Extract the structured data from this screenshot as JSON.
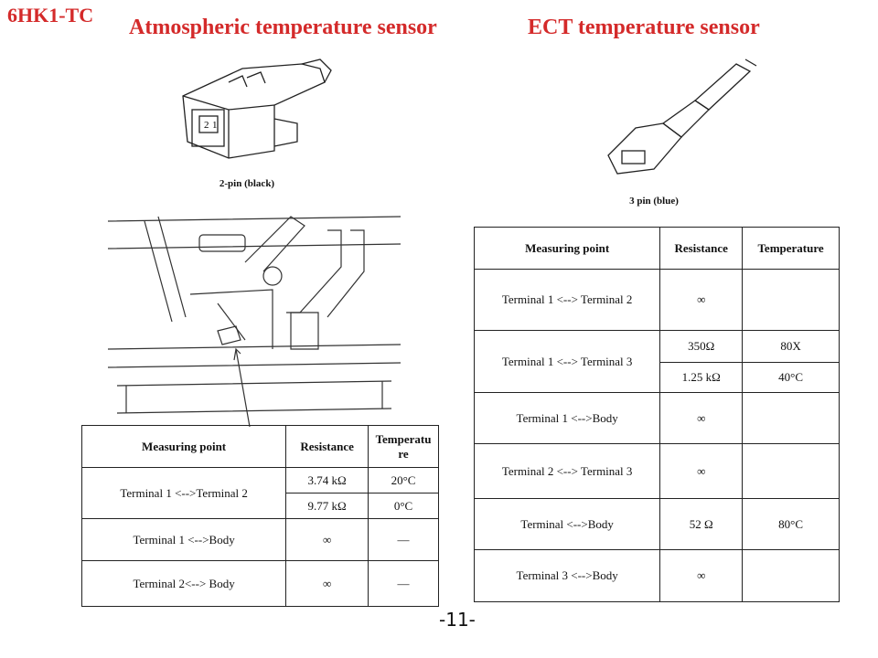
{
  "header": {
    "model": "6HK1-TC",
    "left_title": "Atmospheric temperature sensor",
    "right_title": "ECT temperature sensor"
  },
  "left": {
    "connector_caption": "2-pin (black)",
    "connector_pins": [
      "2",
      "1"
    ],
    "table": {
      "headers": [
        "Measuring point",
        "Resistance",
        "Temperatu re"
      ],
      "rows": [
        {
          "point": "Terminal 1 <-->Terminal 2",
          "values": [
            [
              "3.74 kΩ",
              "20°C"
            ],
            [
              "9.77 kΩ",
              "0°C"
            ]
          ]
        },
        {
          "point": "Terminal 1 <-->Body",
          "values": [
            [
              "∞",
              "—"
            ]
          ]
        },
        {
          "point": "Terminal 2<--> Body",
          "values": [
            [
              "∞",
              "—"
            ]
          ]
        }
      ]
    }
  },
  "right": {
    "connector_caption": "3 pin (blue)",
    "table": {
      "headers": [
        "Measuring point",
        "Resistance",
        "Temperature"
      ],
      "rows": [
        {
          "point": "Terminal 1 <--> Terminal 2",
          "values": [
            [
              "∞",
              ""
            ]
          ]
        },
        {
          "point": "Terminal 1 <--> Terminal 3",
          "values": [
            [
              "350Ω",
              "80X"
            ],
            [
              "1.25 kΩ",
              "40°C"
            ]
          ]
        },
        {
          "point": "Terminal 1 <-->Body",
          "values": [
            [
              "∞",
              ""
            ]
          ]
        },
        {
          "point": "Terminal 2 <--> Terminal 3",
          "values": [
            [
              "∞",
              ""
            ]
          ]
        },
        {
          "point": "Terminal <-->Body",
          "values": [
            [
              "52 Ω",
              "80°C"
            ]
          ]
        },
        {
          "point": "Terminal 3 <-->Body",
          "values": [
            [
              "∞",
              ""
            ]
          ]
        }
      ]
    }
  },
  "footer": {
    "page_number": "-11-"
  }
}
